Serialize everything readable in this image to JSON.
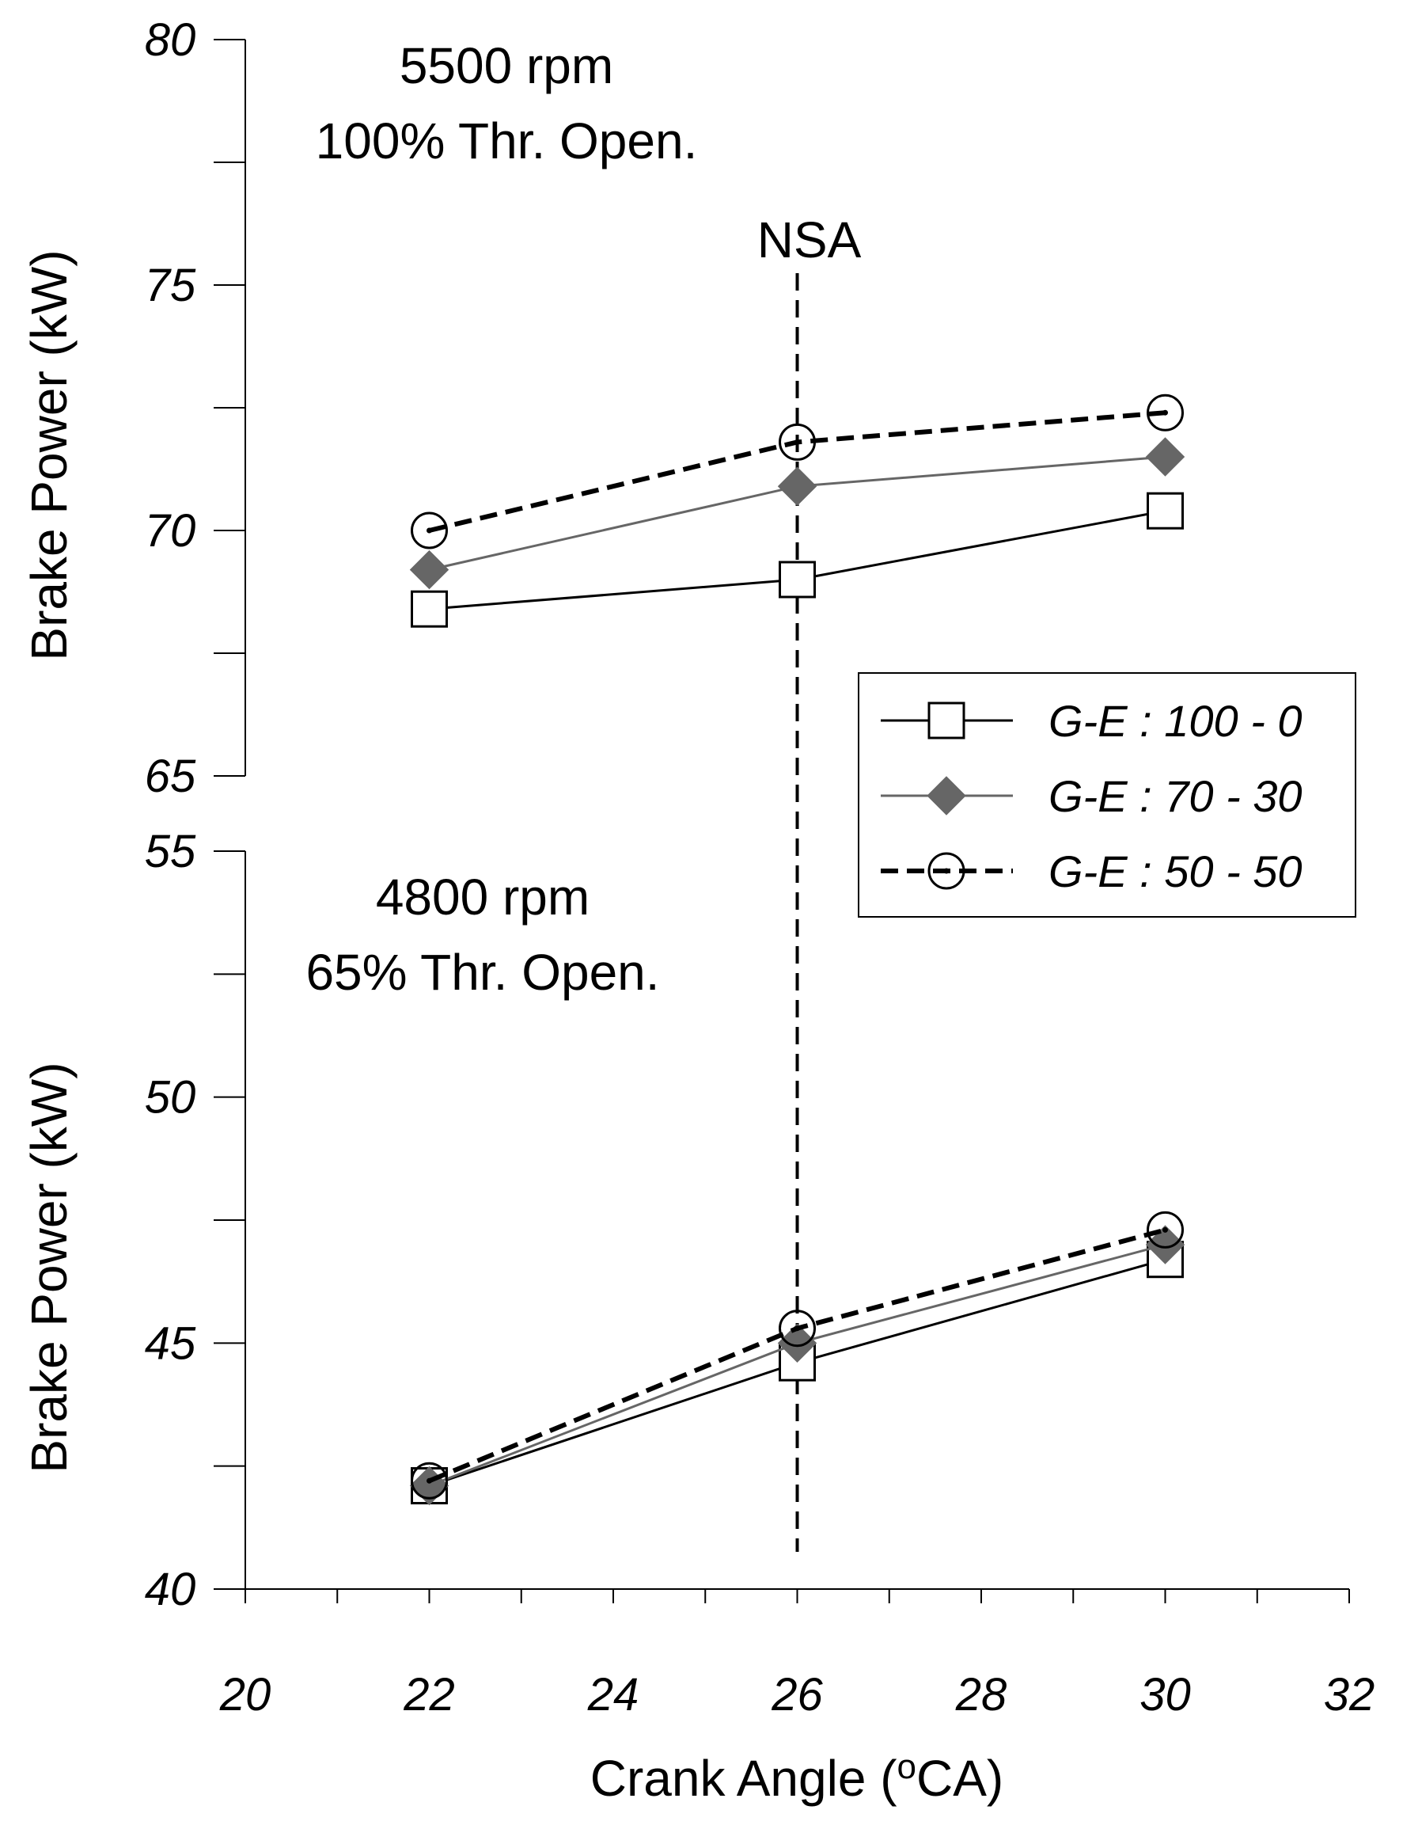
{
  "chart_data": {
    "type": "line",
    "x": [
      22,
      26,
      30
    ],
    "xlabel": "Crank Angle (",
    "xlabel_sup": "o",
    "xlabel_end": "CA)",
    "xlim": [
      20,
      32
    ],
    "xticks": [
      "20",
      "22",
      "24",
      "26",
      "28",
      "30",
      "32"
    ],
    "legend": {
      "position": "center-right",
      "entries": [
        "G-E : 100 - 0",
        "G-E : 70 - 30",
        "G-E : 50 - 50"
      ]
    },
    "vline": {
      "x": 26,
      "label": "NSA"
    },
    "panels": [
      {
        "id": "top",
        "annotation_line1": "5500 rpm",
        "annotation_line2": "100% Thr. Open.",
        "ylabel": "Brake Power (kW)",
        "ylim": [
          65,
          80
        ],
        "yticks": [
          "65",
          "70",
          "75",
          "80"
        ],
        "series": [
          {
            "name": "G-E : 100 - 0",
            "values": [
              68.4,
              69.0,
              70.4
            ]
          },
          {
            "name": "G-E : 70 - 30",
            "values": [
              69.2,
              70.9,
              71.5
            ]
          },
          {
            "name": "G-E : 50 - 50",
            "values": [
              70.0,
              71.8,
              72.4
            ]
          }
        ]
      },
      {
        "id": "bottom",
        "annotation_line1": "4800 rpm",
        "annotation_line2": "65% Thr. Open.",
        "ylabel": "Brake Power (kW)",
        "ylim": [
          40,
          55
        ],
        "yticks": [
          "40",
          "45",
          "50",
          "55"
        ],
        "series": [
          {
            "name": "G-E : 100 - 0",
            "values": [
              42.1,
              44.6,
              46.7
            ]
          },
          {
            "name": "G-E : 70 - 30",
            "values": [
              42.1,
              45.0,
              47.0
            ]
          },
          {
            "name": "G-E : 50 - 50",
            "values": [
              42.2,
              45.3,
              47.3
            ]
          }
        ]
      }
    ],
    "series_styles": [
      {
        "color": "#000000",
        "marker": "open-square",
        "dash": "solid"
      },
      {
        "color": "#666666",
        "marker": "filled-diamond",
        "dash": "solid"
      },
      {
        "color": "#000000",
        "marker": "open-circle-dot",
        "dash": "dashed"
      }
    ]
  }
}
